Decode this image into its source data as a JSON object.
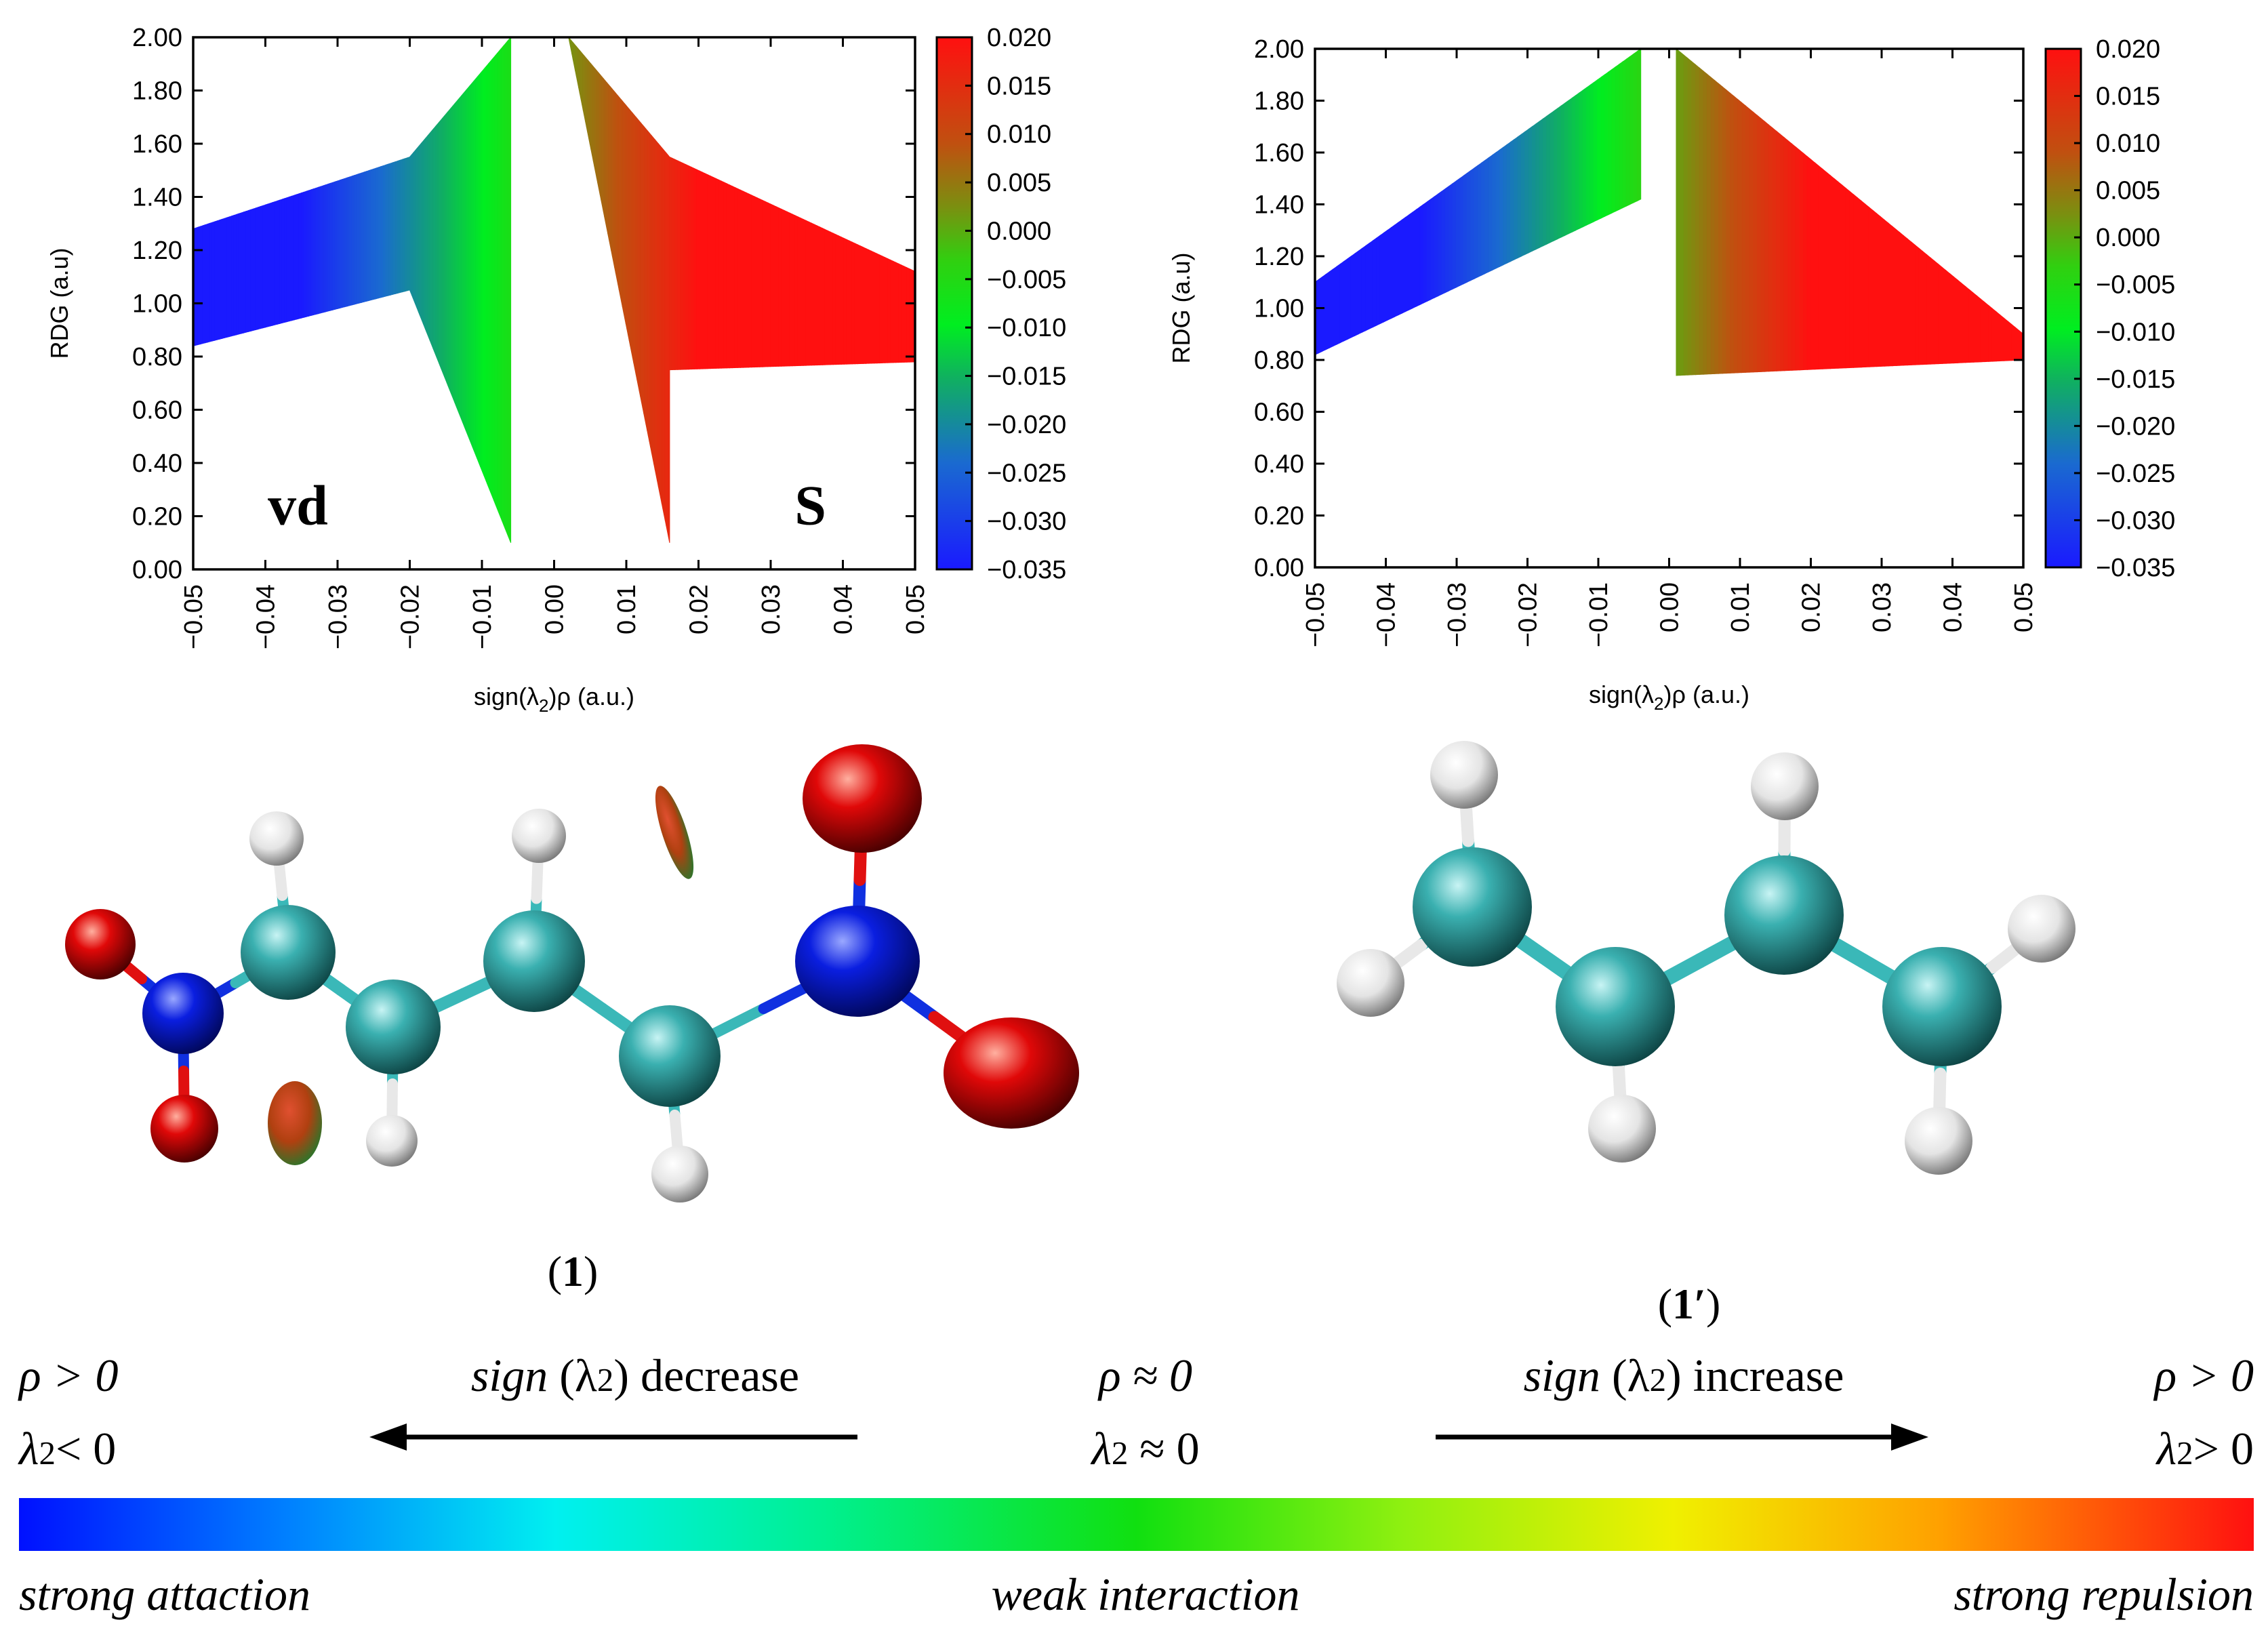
{
  "chart_data": [
    {
      "type": "scatter",
      "xlabel_pre": "sign(λ",
      "xlabel_sub": "2",
      "xlabel_post": ")ρ (a.u.)",
      "ylabel": "RDG (a.u)",
      "xlim": [
        -0.05,
        0.05
      ],
      "ylim": [
        0,
        2.0
      ],
      "x_ticks": [
        "−0.05",
        "−0.04",
        "−0.03",
        "−0.02",
        "−0.01",
        "0.00",
        "0.01",
        "0.02",
        "0.03",
        "0.04",
        "0.05"
      ],
      "y_ticks": [
        "0.00",
        "0.20",
        "0.40",
        "0.60",
        "0.80",
        "1.00",
        "1.20",
        "1.40",
        "1.60",
        "1.80",
        "2.00"
      ],
      "colorbar_range": [
        -0.035,
        0.02
      ],
      "colorbar_ticks": [
        "0.020",
        "0.015",
        "0.010",
        "0.005",
        "0.000",
        "−0.005",
        "−0.010",
        "−0.015",
        "−0.020",
        "−0.025",
        "−0.030",
        "−0.035"
      ],
      "annotations": [
        {
          "text": "vd",
          "color": "#1a9850"
        },
        {
          "text": "S",
          "color": "#c0000a"
        }
      ],
      "regions": [
        {
          "x": [
            -0.05,
            -0.02
          ],
          "rdg_upper": [
            1.28,
            1.55
          ],
          "rdg_lower": [
            0.84,
            1.05
          ]
        },
        {
          "x": [
            -0.02,
            -0.006
          ],
          "rdg_upper": [
            1.55,
            2.0
          ],
          "rdg_lower": [
            1.05,
            0.1
          ]
        },
        {
          "x": [
            0.002,
            0.016
          ],
          "rdg_upper": [
            2.0,
            1.55
          ],
          "rdg_lower": [
            2.0,
            0.1
          ]
        },
        {
          "x": [
            0.016,
            0.05
          ],
          "rdg_upper": [
            1.55,
            1.12
          ],
          "rdg_lower": [
            0.75,
            0.78
          ]
        }
      ]
    },
    {
      "type": "scatter",
      "xlabel_pre": "sign(λ",
      "xlabel_sub": "2",
      "xlabel_post": ")ρ (a.u.)",
      "ylabel": "RDG (a.u)",
      "xlim": [
        -0.05,
        0.05
      ],
      "ylim": [
        0,
        2.0
      ],
      "x_ticks": [
        "−0.05",
        "−0.04",
        "−0.03",
        "−0.02",
        "−0.01",
        "0.00",
        "0.01",
        "0.02",
        "0.03",
        "0.04",
        "0.05"
      ],
      "y_ticks": [
        "0.00",
        "0.20",
        "0.40",
        "0.60",
        "0.80",
        "1.00",
        "1.20",
        "1.40",
        "1.60",
        "1.80",
        "2.00"
      ],
      "colorbar_range": [
        -0.035,
        0.02
      ],
      "colorbar_ticks": [
        "0.020",
        "0.015",
        "0.010",
        "0.005",
        "0.000",
        "−0.005",
        "−0.010",
        "−0.015",
        "−0.020",
        "−0.025",
        "−0.030",
        "−0.035"
      ],
      "regions": [
        {
          "x": [
            -0.05,
            -0.004
          ],
          "rdg_upper": [
            1.1,
            2.0
          ],
          "rdg_lower": [
            0.82,
            1.42
          ]
        },
        {
          "x": [
            0.001,
            0.05
          ],
          "rdg_upper": [
            2.0,
            0.9
          ],
          "rdg_lower": [
            0.74,
            0.8
          ]
        }
      ]
    }
  ],
  "labels": {
    "mol1_open": "(",
    "mol1_num": "1",
    "mol1_close": ")",
    "mol2_open": "(",
    "mol2_num": "1′",
    "mol2_close": ")"
  },
  "legend": {
    "left_rho": "ρ > 0",
    "left_lambda": "λ",
    "left_lambda_sub": "2",
    "left_lambda_rel": "< 0",
    "decrease_sign": "sign",
    "decrease_paren_open": " (λ",
    "decrease_sub": "2",
    "decrease_paren_close": ") decrease",
    "mid_rho": "ρ ≈ 0",
    "mid_lambda": "λ",
    "mid_lambda_sub": "2",
    "mid_lambda_rel": " ≈ 0",
    "increase_sign": "sign",
    "increase_paren_open": " (λ",
    "increase_sub": "2",
    "increase_paren_close": ") increase",
    "right_rho": "ρ > 0",
    "right_lambda": "λ",
    "right_lambda_sub": "2",
    "right_lambda_rel": "> 0",
    "strong_attraction": "strong attaction",
    "weak_interaction": "weak interaction",
    "strong_repulsion": "strong repulsion"
  },
  "colors": {
    "blue": "#1010ff",
    "green": "#00e030",
    "red": "#ff1010",
    "carbon": "#2aa0a0",
    "nitrogen": "#0018d8",
    "oxygen": "#e00000",
    "hydrogen": "#ffffff"
  }
}
